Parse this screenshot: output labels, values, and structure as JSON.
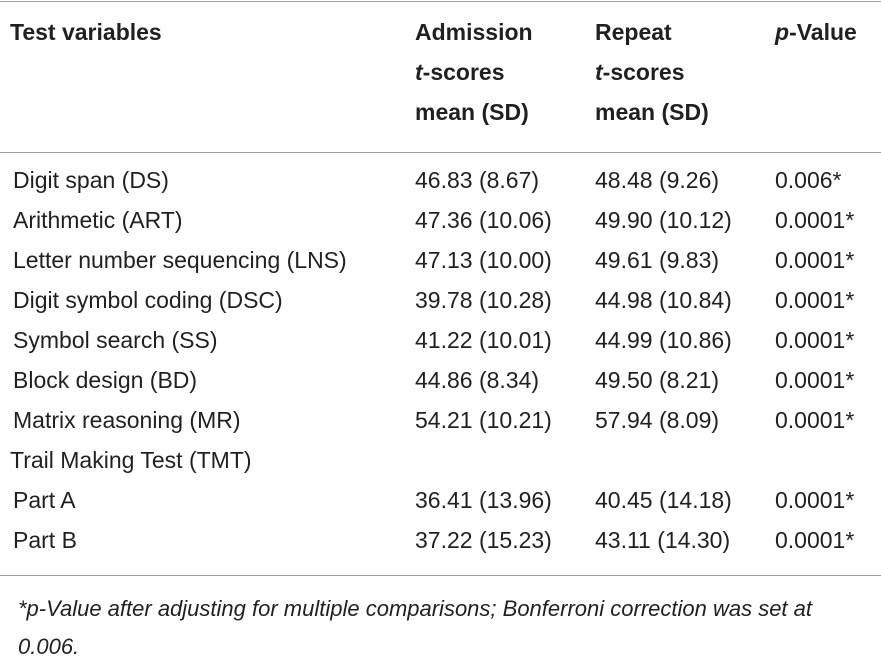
{
  "table": {
    "header": [
      [
        [
          "Test variables"
        ]
      ],
      [
        [
          "Admission"
        ],
        [
          "t",
          "-scores"
        ],
        [
          "mean (SD)"
        ]
      ],
      [
        [
          "Repeat"
        ],
        [
          "t",
          "-scores"
        ],
        [
          "mean (SD)"
        ]
      ],
      [
        [
          "p",
          "-Value"
        ]
      ]
    ],
    "rows": [
      [
        "Digit span (DS)",
        "46.83 (8.67)",
        "48.48 (9.26)",
        "0.006*"
      ],
      [
        "Arithmetic (ART)",
        "47.36 (10.06)",
        "49.90 (10.12)",
        "0.0001*"
      ],
      [
        "Letter number sequencing (LNS)",
        "47.13 (10.00)",
        "49.61 (9.83)",
        "0.0001*"
      ],
      [
        "Digit symbol coding (DSC)",
        "39.78 (10.28)",
        "44.98 (10.84)",
        "0.0001*"
      ],
      [
        "Symbol search (SS)",
        "41.22 (10.01)",
        "44.99 (10.86)",
        "0.0001*"
      ],
      [
        "Block design (BD)",
        "44.86 (8.34)",
        "49.50 (8.21)",
        "0.0001*"
      ],
      [
        "Matrix reasoning (MR)",
        "54.21 (10.21)",
        "57.94 (8.09)",
        "0.0001*"
      ],
      [
        "Trail Making Test (TMT)"
      ],
      [
        "Part A",
        "36.41 (13.96)",
        "40.45 (14.18)",
        "0.0001*"
      ],
      [
        "Part B",
        "37.22 (15.23)",
        "43.11 (14.30)",
        "0.0001*"
      ]
    ],
    "footnote": "*p-Value after adjusting for multiple comparisons; Bonferroni correction was set at 0.006."
  }
}
